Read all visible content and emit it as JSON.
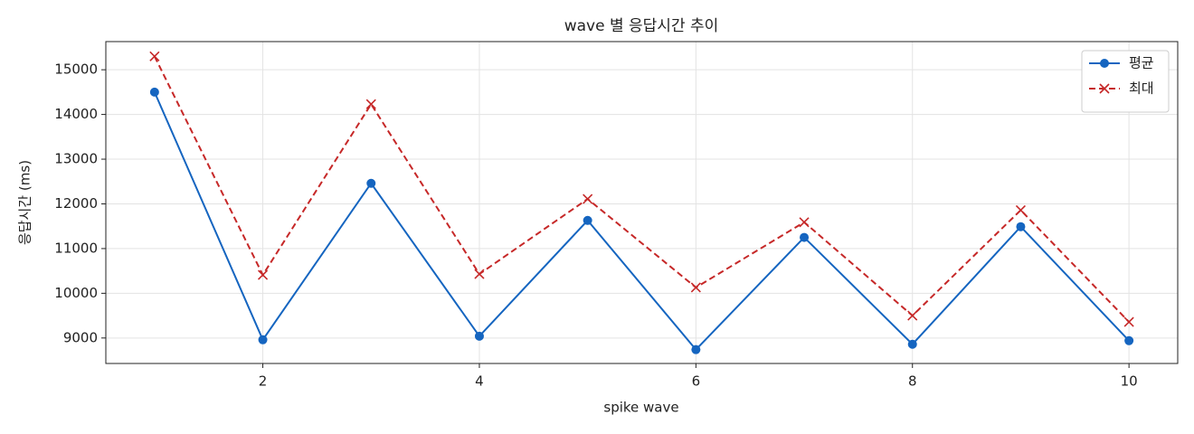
{
  "chart_data": {
    "type": "line",
    "title": "wave 별 응답시간 추이",
    "x_label": "spike wave",
    "y_label": "응답시간 (ms)",
    "x": [
      1,
      2,
      3,
      4,
      5,
      6,
      7,
      8,
      9,
      10
    ],
    "series": [
      {
        "name": "평균",
        "color": "#1565c0",
        "marker": "o",
        "linestyle": "solid",
        "values": [
          14500,
          8960,
          12460,
          9040,
          11630,
          8740,
          11250,
          8860,
          11490,
          8940
        ]
      },
      {
        "name": "최대",
        "color": "#c62828",
        "marker": "x",
        "linestyle": "dashed",
        "values": [
          15300,
          10410,
          14230,
          10430,
          12110,
          10130,
          11590,
          9500,
          11860,
          9360
        ]
      }
    ],
    "xlim": [
      0.55,
      10.45
    ],
    "ylim": [
      8430,
      15630
    ],
    "xticks": [
      2,
      4,
      6,
      8,
      10
    ],
    "yticks": [
      9000,
      10000,
      11000,
      12000,
      13000,
      14000,
      15000
    ],
    "grid": true,
    "legend": "upper right"
  }
}
